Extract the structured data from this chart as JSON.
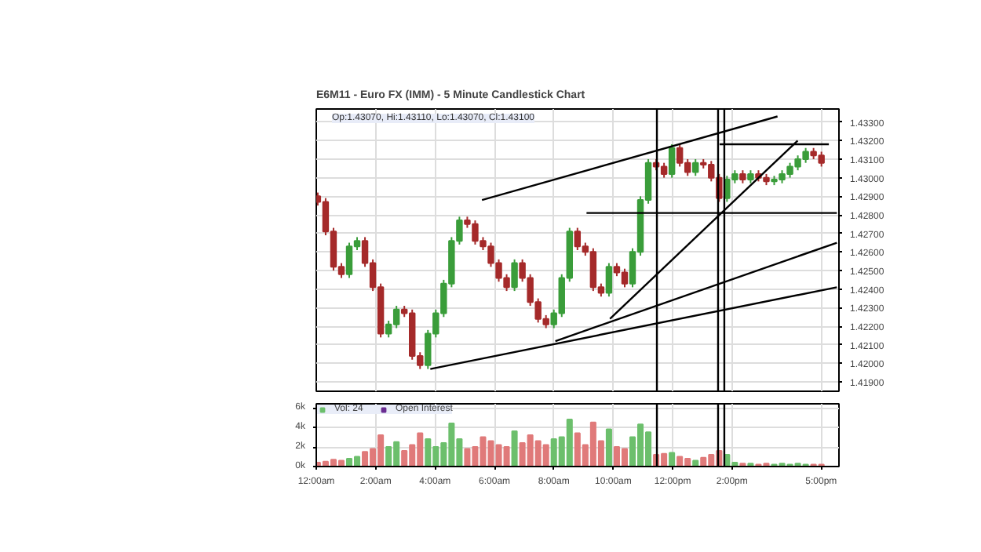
{
  "chart_data": [
    {
      "type": "candlestick",
      "title": "E6M11 - Euro FX (IMM) - 5 Minute Candlestick Chart",
      "annotations": [
        "Op:1.43070, Hi:1.43110, Lo:1.43070, Cl:1.43100"
      ],
      "xlim": [
        0,
        17.6
      ],
      "ylim": [
        1.4185,
        1.4337
      ],
      "yticks": [
        {
          "value": 1.419,
          "label": "1.41900"
        },
        {
          "value": 1.42,
          "label": "1.42000"
        },
        {
          "value": 1.421,
          "label": "1.42100"
        },
        {
          "value": 1.422,
          "label": "1.42200"
        },
        {
          "value": 1.423,
          "label": "1.42300"
        },
        {
          "value": 1.424,
          "label": "1.42400"
        },
        {
          "value": 1.425,
          "label": "1.42500"
        },
        {
          "value": 1.426,
          "label": "1.42600"
        },
        {
          "value": 1.427,
          "label": "1.42700"
        },
        {
          "value": 1.428,
          "label": "1.42800"
        },
        {
          "value": 1.429,
          "label": "1.42900"
        },
        {
          "value": 1.43,
          "label": "1.43000"
        },
        {
          "value": 1.431,
          "label": "1.43100"
        },
        {
          "value": 1.432,
          "label": "1.43200"
        },
        {
          "value": 1.433,
          "label": "1.43300"
        }
      ],
      "xticks": [
        {
          "value": 0,
          "label": null
        },
        {
          "value": 2,
          "label": null
        },
        {
          "value": 4,
          "label": null
        },
        {
          "value": 6,
          "label": null
        },
        {
          "value": 8,
          "label": null
        },
        {
          "value": 10,
          "label": null
        },
        {
          "value": 12,
          "label": null
        },
        {
          "value": 14,
          "label": null
        },
        {
          "value": 17,
          "label": null
        }
      ],
      "tick_labels": "y",
      "grid": true,
      "series": [
        {
          "type": "candlestick",
          "x": [
            0.05,
            0.315,
            0.58,
            0.845,
            1.11,
            1.375,
            1.64,
            1.905,
            2.17,
            2.435,
            2.7,
            2.965,
            3.23,
            3.495,
            3.76,
            4.025,
            4.29,
            4.555,
            4.82,
            5.085,
            5.35,
            5.615,
            5.88,
            6.145,
            6.41,
            6.675,
            6.94,
            7.205,
            7.47,
            7.735,
            8.0,
            8.265,
            8.53,
            8.795,
            9.06,
            9.325,
            9.59,
            9.855,
            10.12,
            10.385,
            10.65,
            10.915,
            11.18,
            11.445,
            11.71,
            11.975,
            12.24,
            12.505,
            12.77,
            13.035,
            13.3,
            13.565,
            13.83,
            14.095,
            14.36,
            14.625,
            14.89,
            15.155,
            15.42,
            15.685,
            15.95,
            16.215,
            16.48,
            16.745,
            17.01
          ],
          "ohlc": [
            [
              1.429,
              1.4292,
              1.4285,
              1.4287
            ],
            [
              1.4287,
              1.4289,
              1.4269,
              1.4271
            ],
            [
              1.4271,
              1.4273,
              1.425,
              1.4252
            ],
            [
              1.4252,
              1.4254,
              1.4246,
              1.4248
            ],
            [
              1.4248,
              1.4265,
              1.4246,
              1.4263
            ],
            [
              1.4263,
              1.4268,
              1.4261,
              1.4266
            ],
            [
              1.4266,
              1.4268,
              1.4252,
              1.4254
            ],
            [
              1.4254,
              1.4256,
              1.4239,
              1.4241
            ],
            [
              1.4241,
              1.4243,
              1.4214,
              1.4216
            ],
            [
              1.4216,
              1.4223,
              1.4214,
              1.4221
            ],
            [
              1.4221,
              1.4231,
              1.4219,
              1.4229
            ],
            [
              1.4229,
              1.4231,
              1.4225,
              1.4227
            ],
            [
              1.4227,
              1.4229,
              1.4202,
              1.4204
            ],
            [
              1.4204,
              1.4206,
              1.4197,
              1.4199
            ],
            [
              1.4199,
              1.4218,
              1.4197,
              1.4216
            ],
            [
              1.4216,
              1.4229,
              1.4214,
              1.4227
            ],
            [
              1.4227,
              1.4245,
              1.4225,
              1.4243
            ],
            [
              1.4243,
              1.4268,
              1.4241,
              1.4266
            ],
            [
              1.4266,
              1.4279,
              1.4264,
              1.4277
            ],
            [
              1.4277,
              1.4279,
              1.4273,
              1.4275
            ],
            [
              1.4275,
              1.4277,
              1.4264,
              1.4266
            ],
            [
              1.4266,
              1.4268,
              1.4261,
              1.4263
            ],
            [
              1.4263,
              1.4265,
              1.4252,
              1.4254
            ],
            [
              1.4254,
              1.4256,
              1.4244,
              1.4246
            ],
            [
              1.4246,
              1.4248,
              1.4239,
              1.4241
            ],
            [
              1.4241,
              1.4256,
              1.4239,
              1.4254
            ],
            [
              1.4254,
              1.4256,
              1.4244,
              1.4246
            ],
            [
              1.4246,
              1.4248,
              1.4231,
              1.4233
            ],
            [
              1.4233,
              1.4235,
              1.4222,
              1.4224
            ],
            [
              1.4224,
              1.4226,
              1.4219,
              1.4221
            ],
            [
              1.4221,
              1.4229,
              1.4219,
              1.4227
            ],
            [
              1.4227,
              1.4248,
              1.4225,
              1.4246
            ],
            [
              1.4246,
              1.4273,
              1.4244,
              1.4271
            ],
            [
              1.4271,
              1.4273,
              1.4261,
              1.4263
            ],
            [
              1.4263,
              1.4265,
              1.4258,
              1.426
            ],
            [
              1.426,
              1.4262,
              1.4239,
              1.4241
            ],
            [
              1.4241,
              1.4243,
              1.4236,
              1.4238
            ],
            [
              1.4238,
              1.4254,
              1.4236,
              1.4252
            ],
            [
              1.4252,
              1.4254,
              1.4247,
              1.4249
            ],
            [
              1.4249,
              1.4251,
              1.4241,
              1.4243
            ],
            [
              1.4243,
              1.4262,
              1.4241,
              1.426
            ],
            [
              1.426,
              1.429,
              1.4258,
              1.4288
            ],
            [
              1.4288,
              1.431,
              1.4286,
              1.4308
            ],
            [
              1.4308,
              1.431,
              1.4304,
              1.4306
            ],
            [
              1.4306,
              1.4308,
              1.43,
              1.4302
            ],
            [
              1.4302,
              1.4318,
              1.43,
              1.4316
            ],
            [
              1.4316,
              1.4318,
              1.4306,
              1.4308
            ],
            [
              1.4308,
              1.431,
              1.4301,
              1.4303
            ],
            [
              1.4303,
              1.431,
              1.4301,
              1.4308
            ],
            [
              1.4308,
              1.431,
              1.4305,
              1.4307
            ],
            [
              1.4307,
              1.4309,
              1.4298,
              1.43
            ],
            [
              1.43,
              1.4302,
              1.4287,
              1.4289
            ],
            [
              1.4289,
              1.4301,
              1.4287,
              1.4299
            ],
            [
              1.4299,
              1.4304,
              1.4297,
              1.4302
            ],
            [
              1.4302,
              1.4304,
              1.4297,
              1.4299
            ],
            [
              1.4299,
              1.4304,
              1.4297,
              1.4302
            ],
            [
              1.4302,
              1.4304,
              1.4298,
              1.43
            ],
            [
              1.43,
              1.4302,
              1.4296,
              1.4298
            ],
            [
              1.4298,
              1.4301,
              1.4296,
              1.4299
            ],
            [
              1.4299,
              1.4304,
              1.4297,
              1.4302
            ],
            [
              1.4302,
              1.4308,
              1.43,
              1.4306
            ],
            [
              1.4306,
              1.4312,
              1.4304,
              1.431
            ],
            [
              1.431,
              1.4316,
              1.4308,
              1.4314
            ],
            [
              1.4314,
              1.4316,
              1.431,
              1.4312
            ],
            [
              1.4312,
              1.4314,
              1.4306,
              1.4308
            ]
          ],
          "colors": [
            "#a52a2a",
            "#a52a2a",
            "#a52a2a",
            "#a52a2a",
            "#3a9d3a",
            "#3a9d3a",
            "#a52a2a",
            "#a52a2a",
            "#a52a2a",
            "#3a9d3a",
            "#3a9d3a",
            "#a52a2a",
            "#a52a2a",
            "#a52a2a",
            "#3a9d3a",
            "#3a9d3a",
            "#3a9d3a",
            "#3a9d3a",
            "#3a9d3a",
            "#a52a2a",
            "#a52a2a",
            "#a52a2a",
            "#a52a2a",
            "#a52a2a",
            "#a52a2a",
            "#3a9d3a",
            "#a52a2a",
            "#a52a2a",
            "#a52a2a",
            "#a52a2a",
            "#3a9d3a",
            "#3a9d3a",
            "#3a9d3a",
            "#a52a2a",
            "#a52a2a",
            "#a52a2a",
            "#a52a2a",
            "#3a9d3a",
            "#a52a2a",
            "#a52a2a",
            "#3a9d3a",
            "#3a9d3a",
            "#3a9d3a",
            "#a52a2a",
            "#a52a2a",
            "#3a9d3a",
            "#a52a2a",
            "#a52a2a",
            "#3a9d3a",
            "#a52a2a",
            "#a52a2a",
            "#a52a2a",
            "#3a9d3a",
            "#3a9d3a",
            "#a52a2a",
            "#3a9d3a",
            "#a52a2a",
            "#a52a2a",
            "#3a9d3a",
            "#3a9d3a",
            "#3a9d3a",
            "#3a9d3a",
            "#3a9d3a",
            "#a52a2a",
            "#a52a2a"
          ]
        },
        {
          "type": "line",
          "x": [
            5.58,
            15.53
          ],
          "values": [
            1.4288,
            1.4333
          ],
          "color": "#000000"
        },
        {
          "type": "line",
          "x": [
            3.84,
            17.53
          ],
          "values": [
            1.4197,
            1.4241
          ],
          "color": "#000000"
        },
        {
          "type": "line",
          "x": [
            8.05,
            17.53
          ],
          "values": [
            1.4212,
            1.4265
          ],
          "color": "#000000"
        },
        {
          "type": "line",
          "x": [
            9.89,
            16.21
          ],
          "values": [
            1.4224,
            1.432
          ],
          "color": "#000000"
        },
        {
          "type": "line",
          "x": [
            9.1,
            17.53
          ],
          "values": [
            1.4281,
            1.4281
          ],
          "color": "#000000"
        },
        {
          "type": "line",
          "x": [
            13.58,
            17.26
          ],
          "values": [
            1.4318,
            1.4318
          ],
          "color": "#000000"
        }
      ],
      "ref_lines": [
        {
          "axis": "x",
          "value": 11.47,
          "label": null,
          "color": "#000000"
        },
        {
          "axis": "x",
          "value": 13.53,
          "label": null,
          "color": "#000000"
        },
        {
          "axis": "x",
          "value": 13.74,
          "label": null,
          "color": "#000000"
        }
      ]
    },
    {
      "type": "bar",
      "xlim": [
        0,
        17.6
      ],
      "ylim": [
        0,
        6.4
      ],
      "yticks": [
        {
          "value": 0,
          "label": "0k"
        },
        {
          "value": 2,
          "label": "2k"
        },
        {
          "value": 4,
          "label": "4k"
        },
        {
          "value": 6,
          "label": "6k"
        }
      ],
      "xticks": [
        {
          "value": 0,
          "label": "12:00am"
        },
        {
          "value": 2,
          "label": "2:00am"
        },
        {
          "value": 4,
          "label": "4:00am"
        },
        {
          "value": 6,
          "label": "6:00am"
        },
        {
          "value": 8,
          "label": "8:00am"
        },
        {
          "value": 10,
          "label": "10:00am"
        },
        {
          "value": 12,
          "label": "12:00pm"
        },
        {
          "value": 14,
          "label": "2:00pm"
        },
        {
          "value": 17,
          "label": "5:00pm"
        }
      ],
      "grid": true,
      "legend": "top left",
      "x": [
        0.05,
        0.315,
        0.58,
        0.845,
        1.11,
        1.375,
        1.64,
        1.905,
        2.17,
        2.435,
        2.7,
        2.965,
        3.23,
        3.495,
        3.76,
        4.025,
        4.29,
        4.555,
        4.82,
        5.085,
        5.35,
        5.615,
        5.88,
        6.145,
        6.41,
        6.675,
        6.94,
        7.205,
        7.47,
        7.735,
        8.0,
        8.265,
        8.53,
        8.795,
        9.06,
        9.325,
        9.59,
        9.855,
        10.12,
        10.385,
        10.65,
        10.915,
        11.18,
        11.445,
        11.71,
        11.975,
        12.24,
        12.505,
        12.77,
        13.035,
        13.3,
        13.565,
        13.83,
        14.095,
        14.36,
        14.625,
        14.89,
        15.155,
        15.42,
        15.685,
        15.95,
        16.215,
        16.48,
        16.745,
        17.01
      ],
      "series": [
        {
          "name": "Vol: 24",
          "color": "#6cbf6c",
          "values": [
            0.4,
            0.5,
            0.7,
            0.6,
            0.8,
            1.0,
            1.5,
            1.8,
            3.2,
            2.0,
            2.5,
            1.6,
            2.2,
            3.4,
            2.8,
            2.0,
            2.4,
            4.4,
            2.8,
            1.8,
            2.0,
            3.0,
            2.6,
            2.2,
            2.0,
            3.6,
            2.4,
            3.2,
            2.6,
            2.2,
            2.8,
            3.0,
            4.8,
            3.4,
            2.2,
            4.5,
            2.6,
            3.8,
            2.0,
            1.8,
            3.0,
            4.3,
            3.5,
            1.2,
            1.3,
            1.4,
            1.0,
            0.8,
            0.6,
            0.9,
            1.2,
            1.6,
            1.2,
            0.4,
            0.3,
            0.3,
            0.2,
            0.3,
            0.2,
            0.3,
            0.2,
            0.3,
            0.2,
            0.2,
            0.2
          ],
          "colors": [
            "#e07a7a",
            "#e07a7a",
            "#e07a7a",
            "#e07a7a",
            "#6cbf6c",
            "#6cbf6c",
            "#e07a7a",
            "#e07a7a",
            "#e07a7a",
            "#6cbf6c",
            "#6cbf6c",
            "#e07a7a",
            "#e07a7a",
            "#e07a7a",
            "#6cbf6c",
            "#6cbf6c",
            "#6cbf6c",
            "#6cbf6c",
            "#6cbf6c",
            "#e07a7a",
            "#e07a7a",
            "#e07a7a",
            "#e07a7a",
            "#e07a7a",
            "#e07a7a",
            "#6cbf6c",
            "#e07a7a",
            "#e07a7a",
            "#e07a7a",
            "#e07a7a",
            "#6cbf6c",
            "#6cbf6c",
            "#6cbf6c",
            "#e07a7a",
            "#e07a7a",
            "#e07a7a",
            "#e07a7a",
            "#6cbf6c",
            "#e07a7a",
            "#e07a7a",
            "#6cbf6c",
            "#6cbf6c",
            "#6cbf6c",
            "#e07a7a",
            "#e07a7a",
            "#6cbf6c",
            "#e07a7a",
            "#e07a7a",
            "#6cbf6c",
            "#e07a7a",
            "#e07a7a",
            "#e07a7a",
            "#6cbf6c",
            "#6cbf6c",
            "#e07a7a",
            "#6cbf6c",
            "#e07a7a",
            "#e07a7a",
            "#6cbf6c",
            "#6cbf6c",
            "#6cbf6c",
            "#6cbf6c",
            "#6cbf6c",
            "#e07a7a",
            "#e07a7a"
          ]
        },
        {
          "name": "Open Interest",
          "color": "#6a2c91",
          "values": [
            null,
            null,
            null,
            null,
            null,
            null,
            null,
            null,
            null,
            null,
            null,
            null,
            null,
            null,
            null,
            null,
            null,
            null,
            null,
            null,
            null,
            null,
            null,
            null,
            null,
            null,
            null,
            null,
            null,
            null,
            null,
            null,
            null,
            null,
            null,
            null,
            null,
            null,
            null,
            null,
            null,
            null,
            null,
            null,
            null,
            null,
            null,
            null,
            null,
            null,
            null,
            null,
            null,
            null,
            null,
            null,
            null,
            null,
            null,
            null,
            null,
            null,
            null,
            null,
            null
          ]
        }
      ],
      "ref_lines": [
        {
          "axis": "x",
          "value": 11.47,
          "label": null,
          "color": "#000000"
        },
        {
          "axis": "x",
          "value": 13.53,
          "label": null,
          "color": "#000000"
        },
        {
          "axis": "x",
          "value": 13.74,
          "label": null,
          "color": "#000000"
        }
      ]
    }
  ]
}
